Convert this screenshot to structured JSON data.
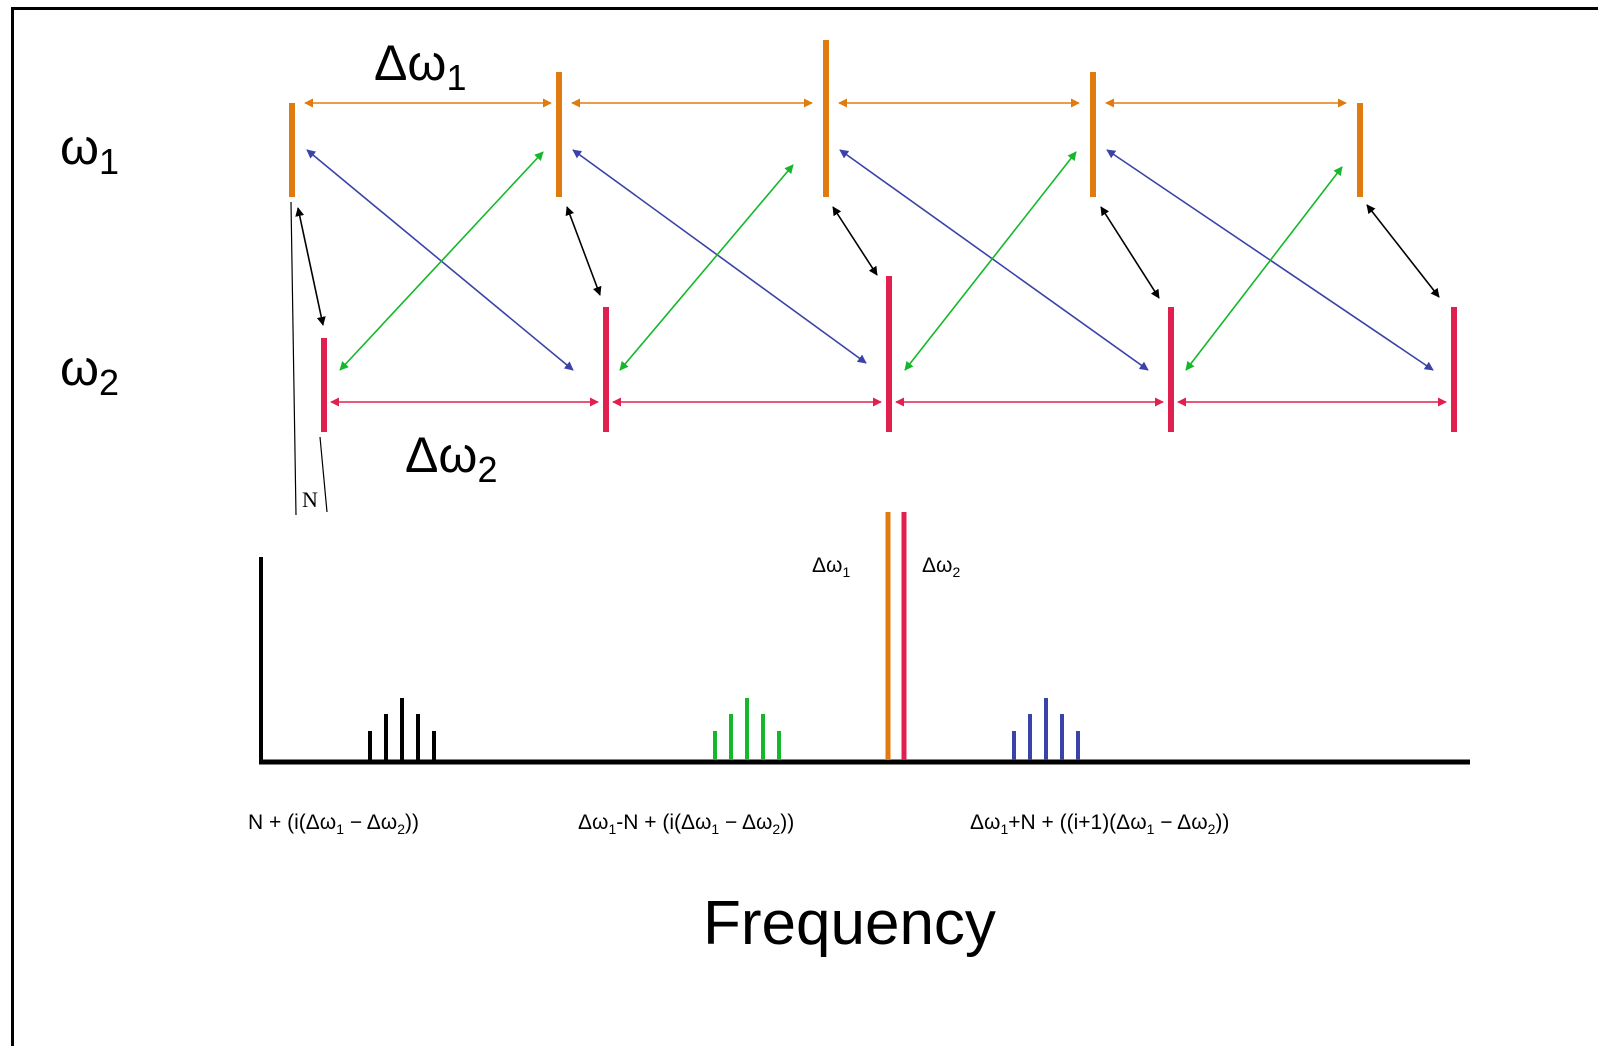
{
  "labels": {
    "omega_1": {
      "sym": "ω",
      "sub": "1"
    },
    "omega_2": {
      "sym": "ω",
      "sub": "2"
    },
    "delta_omega_1": {
      "sym": "Δω",
      "sub": "1"
    },
    "delta_omega_2": {
      "sym": "Δω",
      "sub": "2"
    },
    "N": "N",
    "peak_delta_1": {
      "sym": "Δω",
      "sub": "1"
    },
    "peak_delta_2": {
      "sym": "Δω",
      "sub": "2"
    },
    "group_labels": [
      {
        "p1": "N + (i(Δω",
        "s1": "1",
        "p2": " − Δω",
        "s2": "2",
        "p3": "))"
      },
      {
        "p0": "Δω",
        "s0": "1",
        "p1": "-N + (i(Δω",
        "s1": "1",
        "p2": " − Δω",
        "s2": "2",
        "p3": "))"
      },
      {
        "p0": "Δω",
        "s0": "1",
        "p1": "+N + ((i+1)(Δω",
        "s1": "1",
        "p2": " − Δω",
        "s2": "2",
        "p3": "))"
      }
    ],
    "x_axis": "Frequency"
  },
  "colors": {
    "comb1": "#e07b10",
    "comb2": "#e0204f",
    "cross_blue": "#3a44a8",
    "cross_green": "#14b82a",
    "link_black": "#000000",
    "axis": "#000000"
  }
}
